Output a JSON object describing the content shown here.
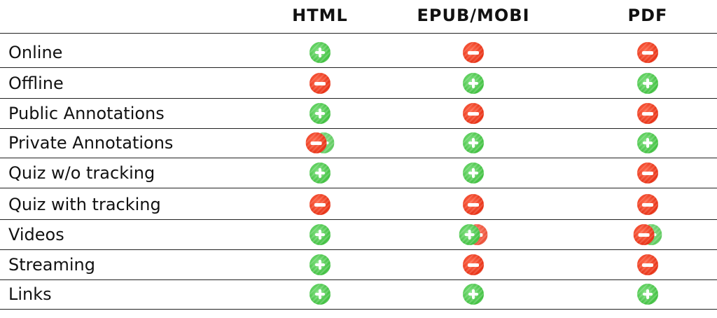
{
  "columns": [
    "HTML",
    "EPUB/MOBI",
    "PDF"
  ],
  "rows": [
    {
      "label": "Online",
      "cells": [
        "plus",
        "minus",
        "minus"
      ]
    },
    {
      "label": "Offline",
      "cells": [
        "minus",
        "plus",
        "plus"
      ]
    },
    {
      "label": "Public Annotations",
      "cells": [
        "plus",
        "minus",
        "minus"
      ]
    },
    {
      "label": "Private Annotations",
      "cells": [
        "mixed-minus-plus",
        "plus",
        "plus"
      ]
    },
    {
      "label": "Quiz w/o tracking",
      "cells": [
        "plus",
        "plus",
        "minus"
      ]
    },
    {
      "label": "Quiz with tracking",
      "cells": [
        "minus",
        "minus",
        "minus"
      ]
    },
    {
      "label": "Videos",
      "cells": [
        "plus",
        "mixed-plus-minus",
        "mixed-minus-plus"
      ]
    },
    {
      "label": "Streaming",
      "cells": [
        "plus",
        "minus",
        "minus"
      ]
    },
    {
      "label": "Links",
      "cells": [
        "plus",
        "plus",
        "plus"
      ]
    }
  ],
  "icon_meanings": {
    "plus": "plus-icon",
    "minus": "minus-icon",
    "mixed-minus-plus": "minus-icon overlapping plus-icon",
    "mixed-plus-minus": "plus-icon overlapping minus-icon"
  },
  "colors": {
    "plus": "#43c143",
    "minus": "#e83418",
    "rule": "#222222"
  }
}
